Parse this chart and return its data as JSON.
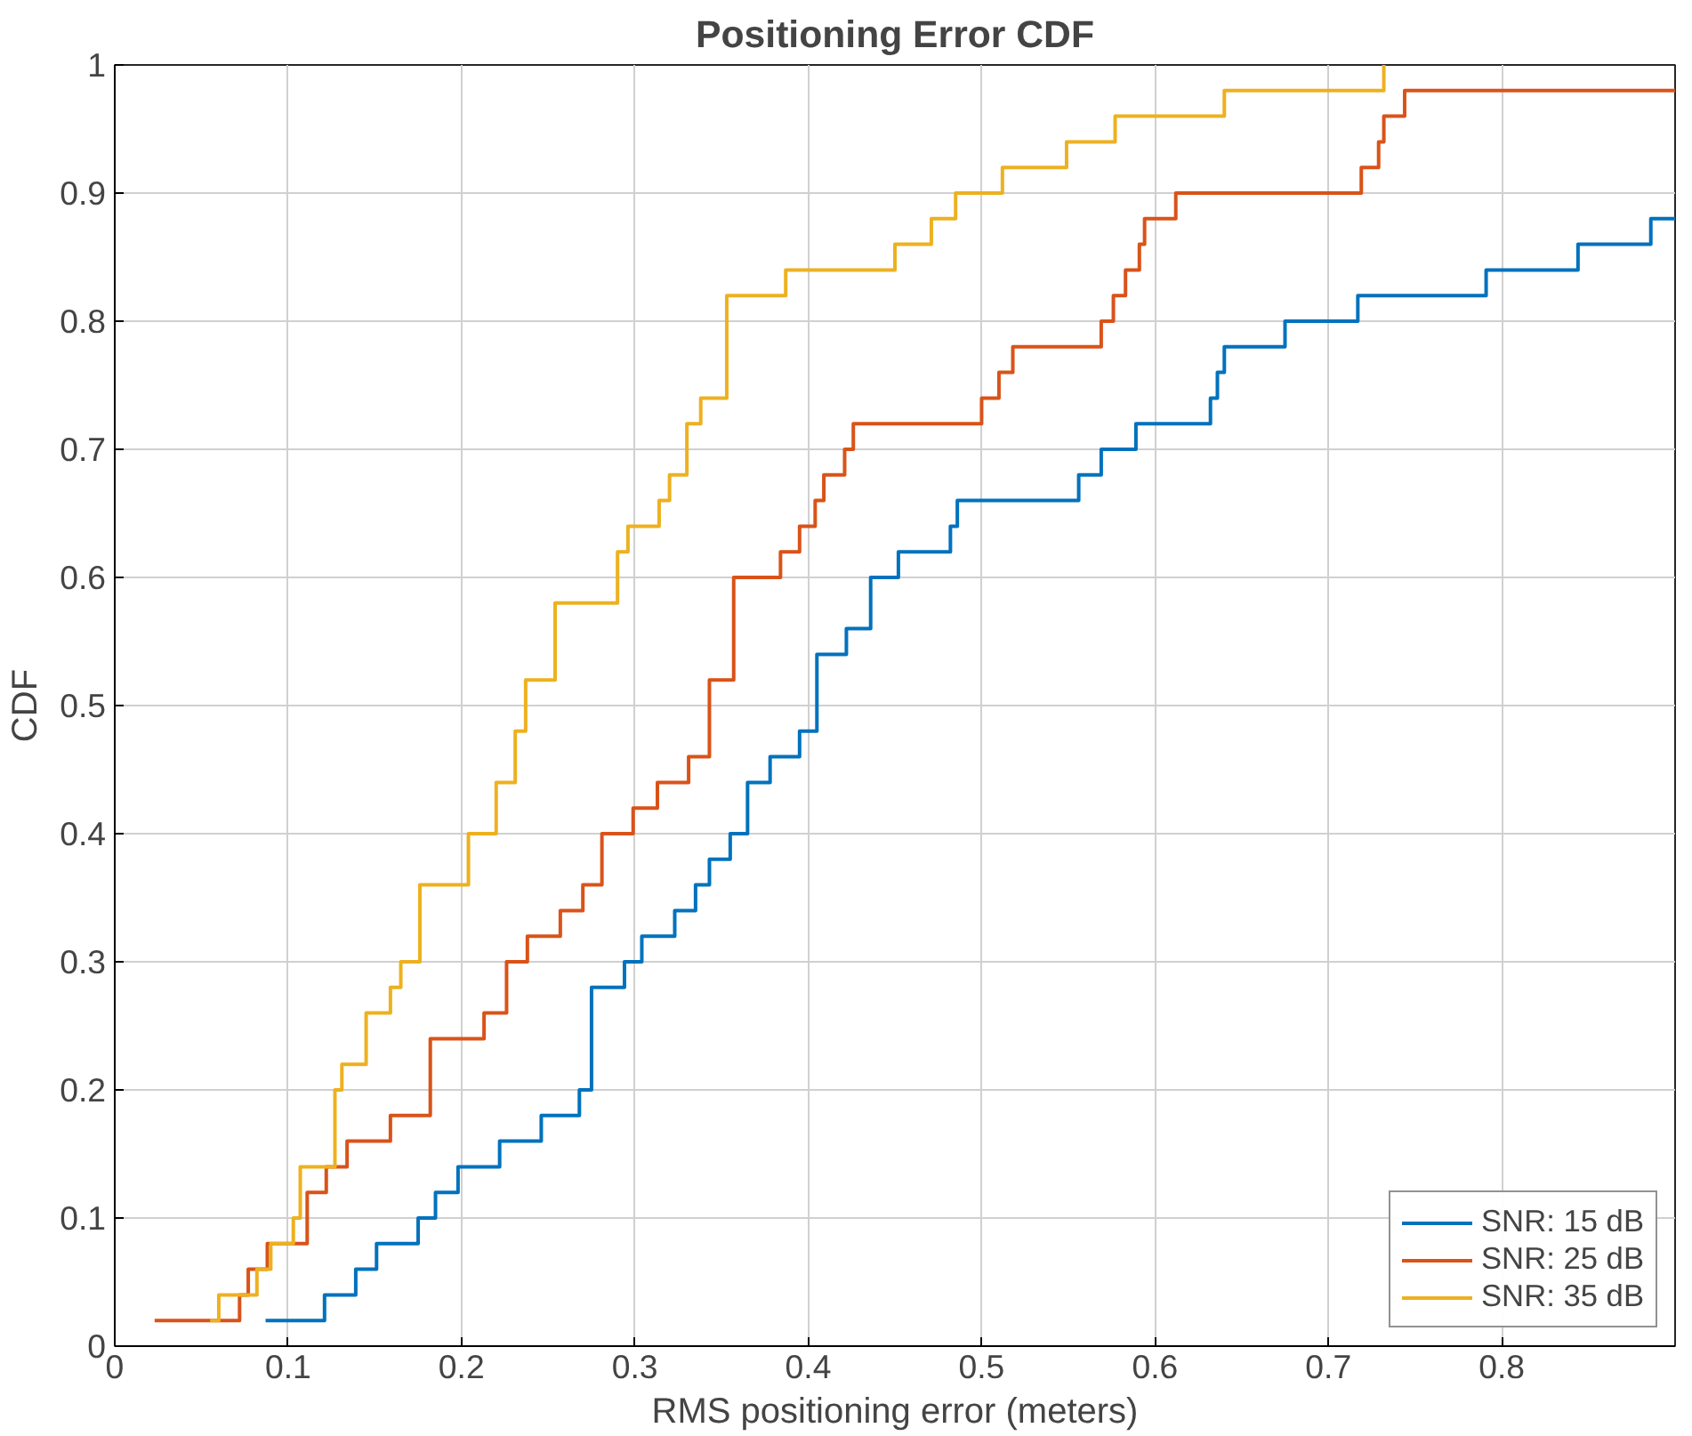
{
  "chart_data": {
    "type": "step",
    "title": "Positioning Error CDF",
    "xlabel": "RMS positioning error (meters)",
    "ylabel": "CDF",
    "xlim": [
      0,
      0.9
    ],
    "xticks": [
      0,
      0.1,
      0.2,
      0.3,
      0.4,
      0.5,
      0.6,
      0.7,
      0.8
    ],
    "ylim": [
      0,
      1
    ],
    "yticks": [
      0,
      0.1,
      0.2,
      0.3,
      0.4,
      0.5,
      0.6,
      0.7,
      0.8,
      0.9,
      1
    ],
    "grid": true,
    "legend": "bottom right",
    "line_style": "solid",
    "series": [
      {
        "name": "SNR: 15 dB",
        "color": "#0072bd",
        "x": [
          0.087,
          0.121,
          0.139,
          0.151,
          0.175,
          0.185,
          0.198,
          0.222,
          0.246,
          0.268,
          0.275,
          0.294,
          0.304,
          0.323,
          0.335,
          0.343,
          0.355,
          0.365,
          0.378,
          0.395,
          0.405,
          0.422,
          0.436,
          0.452,
          0.482,
          0.486,
          0.556,
          0.569,
          0.589,
          0.632,
          0.636,
          0.64,
          0.675,
          0.717,
          0.791,
          0.844,
          0.886,
          0.9
        ],
        "values": [
          0.02,
          0.04,
          0.06,
          0.08,
          0.1,
          0.12,
          0.14,
          0.16,
          0.18,
          0.2,
          0.28,
          0.3,
          0.32,
          0.34,
          0.36,
          0.38,
          0.4,
          0.44,
          0.46,
          0.48,
          0.54,
          0.56,
          0.6,
          0.62,
          0.64,
          0.66,
          0.68,
          0.7,
          0.72,
          0.74,
          0.76,
          0.78,
          0.8,
          0.82,
          0.84,
          0.86,
          0.88,
          0.88
        ]
      },
      {
        "name": "SNR: 25 dB",
        "color": "#d95319",
        "x": [
          0.023,
          0.072,
          0.077,
          0.088,
          0.111,
          0.122,
          0.134,
          0.159,
          0.182,
          0.213,
          0.226,
          0.238,
          0.257,
          0.27,
          0.281,
          0.299,
          0.313,
          0.331,
          0.343,
          0.357,
          0.384,
          0.395,
          0.404,
          0.409,
          0.421,
          0.426,
          0.5,
          0.51,
          0.518,
          0.569,
          0.576,
          0.583,
          0.591,
          0.594,
          0.612,
          0.719,
          0.729,
          0.732,
          0.744,
          0.9
        ],
        "values": [
          0.02,
          0.04,
          0.06,
          0.08,
          0.12,
          0.14,
          0.16,
          0.18,
          0.24,
          0.26,
          0.3,
          0.32,
          0.34,
          0.36,
          0.4,
          0.42,
          0.44,
          0.46,
          0.52,
          0.6,
          0.62,
          0.64,
          0.66,
          0.68,
          0.7,
          0.72,
          0.74,
          0.76,
          0.78,
          0.8,
          0.82,
          0.84,
          0.86,
          0.88,
          0.9,
          0.92,
          0.94,
          0.96,
          0.98,
          0.98
        ]
      },
      {
        "name": "SNR: 35 dB",
        "color": "#edb120",
        "x": [
          0.055,
          0.06,
          0.082,
          0.09,
          0.103,
          0.107,
          0.127,
          0.131,
          0.145,
          0.159,
          0.165,
          0.176,
          0.204,
          0.22,
          0.231,
          0.237,
          0.254,
          0.29,
          0.296,
          0.314,
          0.32,
          0.33,
          0.338,
          0.353,
          0.387,
          0.45,
          0.471,
          0.485,
          0.512,
          0.549,
          0.577,
          0.64,
          0.732
        ],
        "values": [
          0.02,
          0.04,
          0.06,
          0.08,
          0.1,
          0.14,
          0.2,
          0.22,
          0.26,
          0.28,
          0.3,
          0.36,
          0.4,
          0.44,
          0.48,
          0.52,
          0.58,
          0.62,
          0.64,
          0.66,
          0.68,
          0.72,
          0.74,
          0.82,
          0.84,
          0.86,
          0.88,
          0.9,
          0.92,
          0.94,
          0.96,
          0.98,
          1.0
        ]
      }
    ]
  }
}
